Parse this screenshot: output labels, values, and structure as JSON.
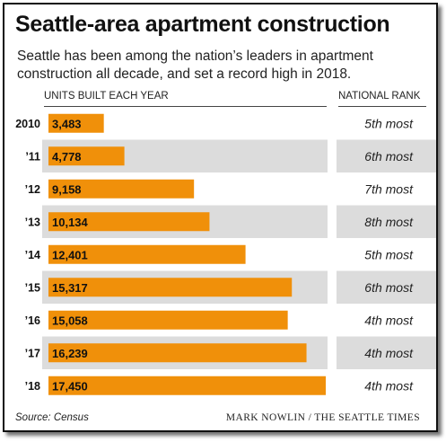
{
  "title": "Seattle-area apartment construction",
  "subtitle": "Seattle has been among the nation’s leaders in apartment construction all decade, and set a record high in 2018.",
  "column_headers": {
    "units": "UNITS BUILT EACH YEAR",
    "rank": "NATIONAL RANK"
  },
  "footer": {
    "source": "Source: Census",
    "credit": "MARK NOWLIN / THE SEATTLE TIMES"
  },
  "colors": {
    "bar": "#F0900A",
    "stripe": "#DCDCDC",
    "text": "#111111"
  },
  "chart_data": {
    "type": "bar",
    "orientation": "horizontal",
    "title": "Seattle-area apartment construction",
    "categories": [
      "2010",
      "’11",
      "’12",
      "’13",
      "’14",
      "’15",
      "’16",
      "’17",
      "’18"
    ],
    "values": [
      3483,
      4778,
      9158,
      10134,
      12401,
      15317,
      15058,
      16239,
      17450
    ],
    "value_labels": [
      "3,483",
      "4,778",
      "9,158",
      "10,134",
      "12,401",
      "15,317",
      "15,058",
      "16,239",
      "17,450"
    ],
    "national_rank": [
      "5th most",
      "6th most",
      "7th most",
      "8th most",
      "5th most",
      "6th most",
      "4th most",
      "4th most",
      "4th most"
    ],
    "xlim": [
      0,
      17450
    ],
    "grid": false
  }
}
